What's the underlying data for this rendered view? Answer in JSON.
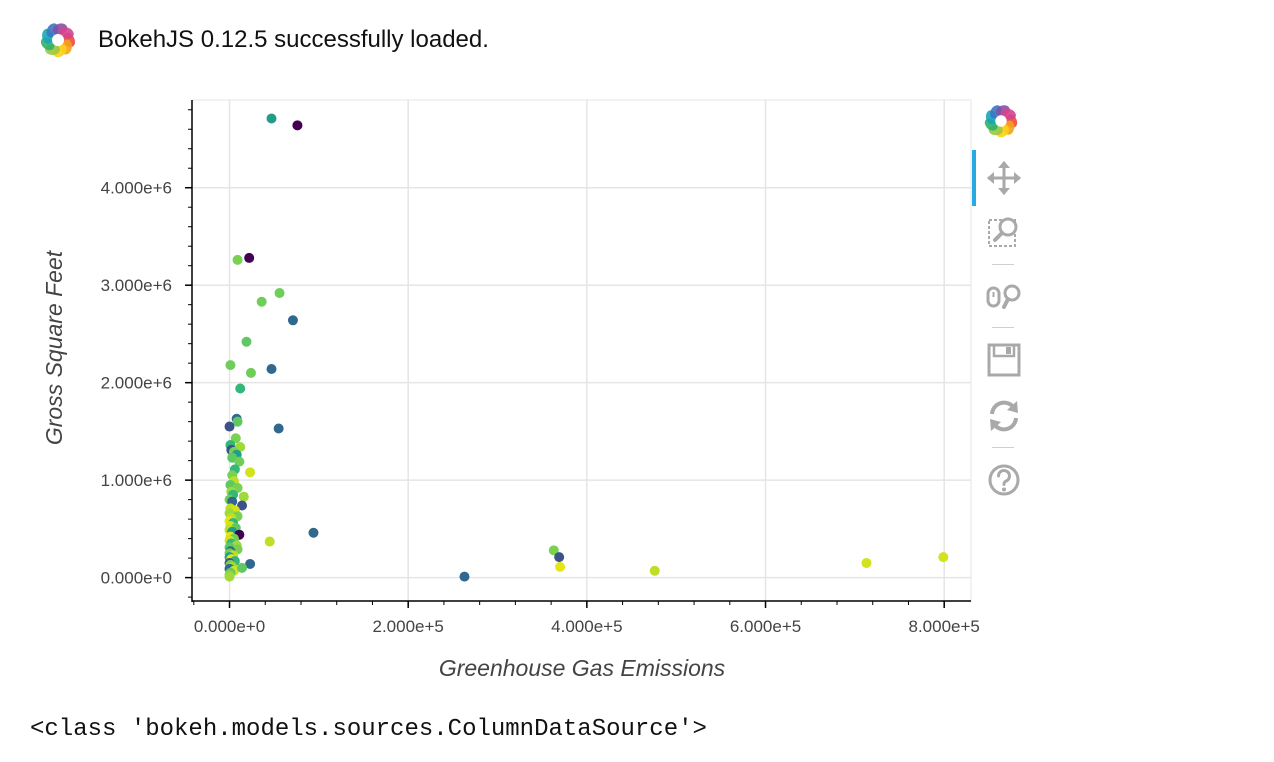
{
  "banner": {
    "text": "BokehJS 0.12.5 successfully loaded.",
    "logo_icon": "bokeh-logo-icon"
  },
  "chart_data": {
    "type": "scatter",
    "xlabel": "Greenhouse Gas Emissions",
    "ylabel": "Gross Square Feet",
    "xlim": [
      -42000,
      830000
    ],
    "ylim": [
      -240000,
      4900000
    ],
    "xticks": [
      0,
      200000,
      400000,
      600000,
      800000
    ],
    "xtick_labels": [
      "0.000e+0",
      "2.000e+5",
      "4.000e+5",
      "6.000e+5",
      "8.000e+5"
    ],
    "yticks": [
      0,
      1000000,
      2000000,
      3000000,
      4000000
    ],
    "ytick_labels": [
      "0.000e+0",
      "1.000e+6",
      "2.000e+6",
      "3.000e+6",
      "4.000e+6"
    ],
    "grid": true,
    "legend": "none",
    "colormap": "viridis",
    "points": [
      {
        "x": 47000,
        "y": 4710000,
        "color": "#1f9e89"
      },
      {
        "x": 76000,
        "y": 4640000,
        "color": "#440154"
      },
      {
        "x": 22000,
        "y": 3280000,
        "color": "#440154"
      },
      {
        "x": 9000,
        "y": 3260000,
        "color": "#7ad151"
      },
      {
        "x": 56000,
        "y": 2920000,
        "color": "#6ece58"
      },
      {
        "x": 36000,
        "y": 2830000,
        "color": "#6ece58"
      },
      {
        "x": 71000,
        "y": 2640000,
        "color": "#31688e"
      },
      {
        "x": 19000,
        "y": 2420000,
        "color": "#5ec962"
      },
      {
        "x": 1000,
        "y": 2180000,
        "color": "#6ece58"
      },
      {
        "x": 47000,
        "y": 2140000,
        "color": "#31688e"
      },
      {
        "x": 24000,
        "y": 2100000,
        "color": "#6ece58"
      },
      {
        "x": 12000,
        "y": 1940000,
        "color": "#35b779"
      },
      {
        "x": 8000,
        "y": 1630000,
        "color": "#31688e"
      },
      {
        "x": 9000,
        "y": 1600000,
        "color": "#5ec962"
      },
      {
        "x": 0,
        "y": 1550000,
        "color": "#3b528b"
      },
      {
        "x": 55000,
        "y": 1530000,
        "color": "#31688e"
      },
      {
        "x": 7000,
        "y": 1430000,
        "color": "#7ad151"
      },
      {
        "x": 1000,
        "y": 1360000,
        "color": "#35b779"
      },
      {
        "x": 12000,
        "y": 1340000,
        "color": "#a0da39"
      },
      {
        "x": 2000,
        "y": 1310000,
        "color": "#3b528b"
      },
      {
        "x": 5000,
        "y": 1290000,
        "color": "#7ad151"
      },
      {
        "x": 8000,
        "y": 1260000,
        "color": "#1f9e89"
      },
      {
        "x": 3000,
        "y": 1230000,
        "color": "#5ec962"
      },
      {
        "x": 11000,
        "y": 1190000,
        "color": "#6ece58"
      },
      {
        "x": 6000,
        "y": 1110000,
        "color": "#35b779"
      },
      {
        "x": 23000,
        "y": 1080000,
        "color": "#d2e21b"
      },
      {
        "x": 3000,
        "y": 1050000,
        "color": "#7ad151"
      },
      {
        "x": 5000,
        "y": 990000,
        "color": "#bddf26"
      },
      {
        "x": 1000,
        "y": 950000,
        "color": "#5ec962"
      },
      {
        "x": 9000,
        "y": 920000,
        "color": "#7ad151"
      },
      {
        "x": 2000,
        "y": 880000,
        "color": "#a0da39"
      },
      {
        "x": 4000,
        "y": 850000,
        "color": "#35b779"
      },
      {
        "x": 16000,
        "y": 830000,
        "color": "#a0da39"
      },
      {
        "x": 0,
        "y": 800000,
        "color": "#6ece58"
      },
      {
        "x": 3000,
        "y": 780000,
        "color": "#31688e"
      },
      {
        "x": 14000,
        "y": 740000,
        "color": "#3b528b"
      },
      {
        "x": 1000,
        "y": 710000,
        "color": "#bddf26"
      },
      {
        "x": 6000,
        "y": 690000,
        "color": "#d2e21b"
      },
      {
        "x": 0,
        "y": 660000,
        "color": "#a0da39"
      },
      {
        "x": 9000,
        "y": 630000,
        "color": "#7ad151"
      },
      {
        "x": 2000,
        "y": 610000,
        "color": "#bddf26"
      },
      {
        "x": 0,
        "y": 580000,
        "color": "#e5e419"
      },
      {
        "x": 4000,
        "y": 560000,
        "color": "#35b779"
      },
      {
        "x": 1000,
        "y": 530000,
        "color": "#d2e21b"
      },
      {
        "x": 7000,
        "y": 510000,
        "color": "#5ec962"
      },
      {
        "x": 0,
        "y": 490000,
        "color": "#bddf26"
      },
      {
        "x": 3000,
        "y": 470000,
        "color": "#1f9e89"
      },
      {
        "x": 11000,
        "y": 440000,
        "color": "#440154"
      },
      {
        "x": 1000,
        "y": 420000,
        "color": "#e5e419"
      },
      {
        "x": 5000,
        "y": 400000,
        "color": "#6ece58"
      },
      {
        "x": 0,
        "y": 380000,
        "color": "#d2e21b"
      },
      {
        "x": 2000,
        "y": 350000,
        "color": "#35b779"
      },
      {
        "x": 8000,
        "y": 330000,
        "color": "#a0da39"
      },
      {
        "x": 0,
        "y": 310000,
        "color": "#5ec962"
      },
      {
        "x": 9000,
        "y": 290000,
        "color": "#7ad151"
      },
      {
        "x": 1000,
        "y": 270000,
        "color": "#31688e"
      },
      {
        "x": 0,
        "y": 250000,
        "color": "#6ece58"
      },
      {
        "x": 4000,
        "y": 230000,
        "color": "#bddf26"
      },
      {
        "x": 0,
        "y": 210000,
        "color": "#1f9e89"
      },
      {
        "x": 2000,
        "y": 190000,
        "color": "#e5e419"
      },
      {
        "x": 6000,
        "y": 170000,
        "color": "#35b779"
      },
      {
        "x": 0,
        "y": 150000,
        "color": "#3b528b"
      },
      {
        "x": 1000,
        "y": 130000,
        "color": "#7ad151"
      },
      {
        "x": 3000,
        "y": 110000,
        "color": "#a0da39"
      },
      {
        "x": 0,
        "y": 90000,
        "color": "#31688e"
      },
      {
        "x": 5000,
        "y": 70000,
        "color": "#d2e21b"
      },
      {
        "x": 1000,
        "y": 50000,
        "color": "#5ec962"
      },
      {
        "x": 0,
        "y": 30000,
        "color": "#7ad151"
      },
      {
        "x": 0,
        "y": 10000,
        "color": "#a0da39"
      },
      {
        "x": 94000,
        "y": 460000,
        "color": "#31688e"
      },
      {
        "x": 45000,
        "y": 370000,
        "color": "#bddf26"
      },
      {
        "x": 23000,
        "y": 140000,
        "color": "#31688e"
      },
      {
        "x": 14000,
        "y": 100000,
        "color": "#5ec962"
      },
      {
        "x": 263000,
        "y": 10000,
        "color": "#31688e"
      },
      {
        "x": 363000,
        "y": 280000,
        "color": "#7ad151"
      },
      {
        "x": 369000,
        "y": 210000,
        "color": "#3b528b"
      },
      {
        "x": 370000,
        "y": 110000,
        "color": "#e5e419"
      },
      {
        "x": 476000,
        "y": 70000,
        "color": "#bddf26"
      },
      {
        "x": 713000,
        "y": 150000,
        "color": "#d2e21b"
      },
      {
        "x": 799000,
        "y": 210000,
        "color": "#d2e21b"
      }
    ]
  },
  "toolbar": {
    "logo_icon": "bokeh-logo-icon",
    "tools": [
      {
        "name": "pan-tool",
        "icon": "move-arrows-icon",
        "active": true
      },
      {
        "name": "box-zoom-tool",
        "icon": "box-zoom-icon",
        "active": false
      },
      {
        "name": "wheel-zoom-tool",
        "icon": "wheel-zoom-icon",
        "active": false
      },
      {
        "name": "save-tool",
        "icon": "save-icon",
        "active": false
      },
      {
        "name": "reset-tool",
        "icon": "reset-icon",
        "active": false
      },
      {
        "name": "help-tool",
        "icon": "help-icon",
        "active": false
      }
    ],
    "active_color": "#26aae1"
  },
  "output": {
    "text": "<class 'bokeh.models.sources.ColumnDataSource'>"
  }
}
